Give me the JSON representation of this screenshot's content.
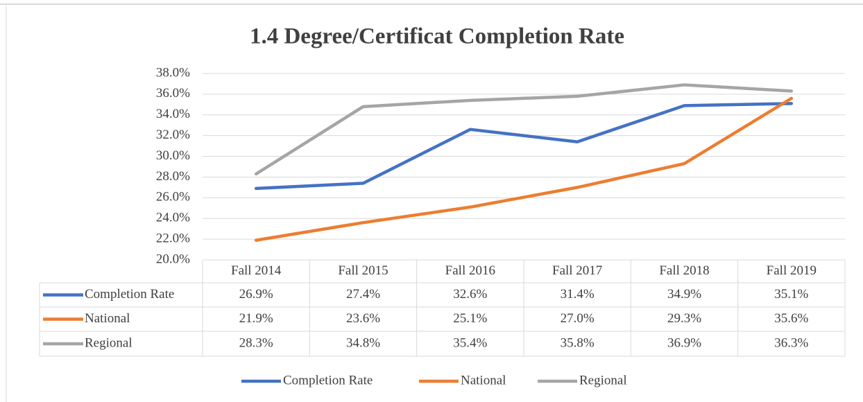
{
  "chart_data": {
    "type": "line",
    "title": "1.4 Degree/Certificat Completion Rate",
    "categories": [
      "Fall 2014",
      "Fall 2015",
      "Fall 2016",
      "Fall 2017",
      "Fall 2018",
      "Fall 2019"
    ],
    "series": [
      {
        "name": "Completion Rate",
        "color": "#4472c4",
        "values": [
          26.9,
          27.4,
          32.6,
          31.4,
          34.9,
          35.1
        ],
        "value_labels": [
          "26.9%",
          "27.4%",
          "32.6%",
          "31.4%",
          "34.9%",
          "35.1%"
        ]
      },
      {
        "name": "National",
        "color": "#ed7d31",
        "values": [
          21.9,
          23.6,
          25.1,
          27.0,
          29.3,
          35.6
        ],
        "value_labels": [
          "21.9%",
          "23.6%",
          "25.1%",
          "27.0%",
          "29.3%",
          "35.6%"
        ]
      },
      {
        "name": "Regional",
        "color": "#a5a5a5",
        "values": [
          28.3,
          34.8,
          35.4,
          35.8,
          36.9,
          36.3
        ],
        "value_labels": [
          "28.3%",
          "34.8%",
          "35.4%",
          "35.8%",
          "36.9%",
          "36.3%"
        ]
      }
    ],
    "ylim": [
      20,
      38
    ],
    "yticks": [
      {
        "value": 20,
        "label": "20.0%"
      },
      {
        "value": 22,
        "label": "22.0%"
      },
      {
        "value": 24,
        "label": "24.0%"
      },
      {
        "value": 26,
        "label": "26.0%"
      },
      {
        "value": 28,
        "label": "28.0%"
      },
      {
        "value": 30,
        "label": "30.0%"
      },
      {
        "value": 32,
        "label": "32.0%"
      },
      {
        "value": 34,
        "label": "34.0%"
      },
      {
        "value": 36,
        "label": "36.0%"
      },
      {
        "value": 38,
        "label": "38.0%"
      }
    ],
    "grid": true,
    "legend": "bottom"
  }
}
